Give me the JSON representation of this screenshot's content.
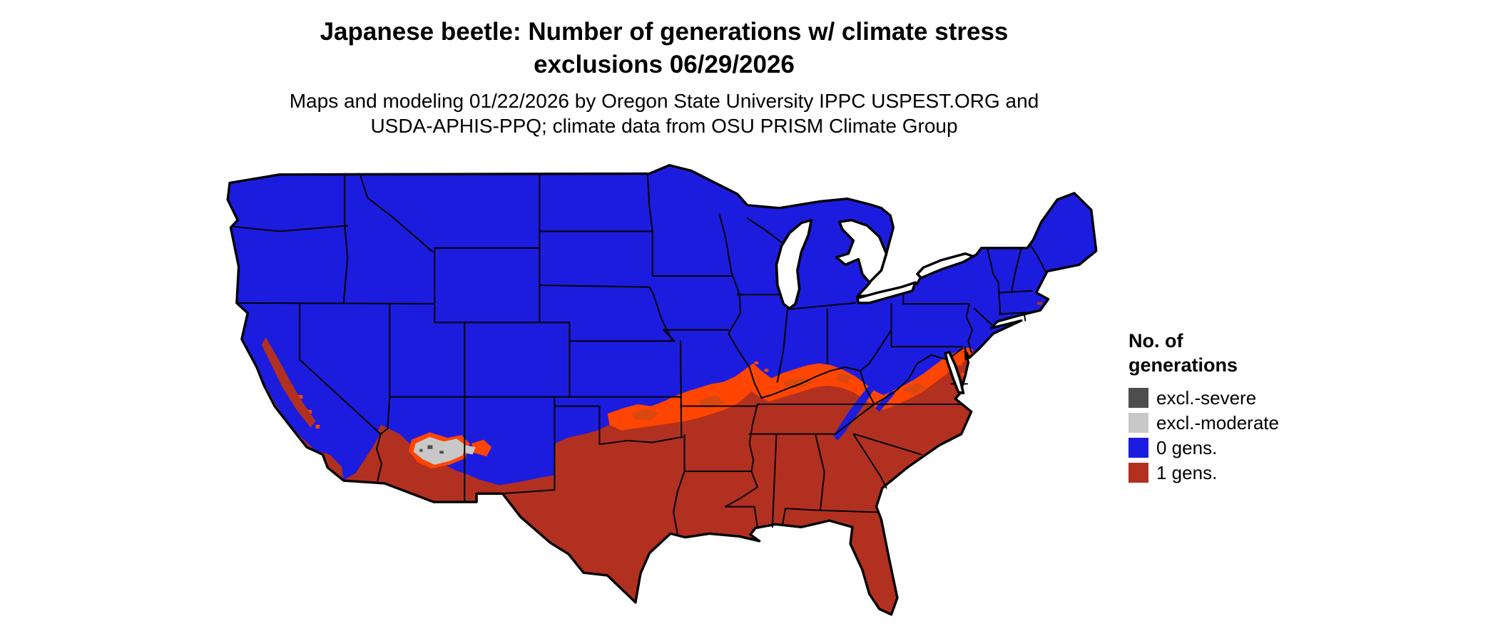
{
  "title": {
    "line1": "Japanese beetle: Number of generations w/ climate stress",
    "line2": "exclusions 06/29/2026"
  },
  "subtitle": {
    "line1": "Maps and modeling 01/22/2026 by Oregon State University IPPC USPEST.ORG and",
    "line2": "USDA-APHIS-PPQ; climate data from OSU PRISM Climate Group"
  },
  "legend": {
    "title_line1": "No. of",
    "title_line2": "generations",
    "items": [
      {
        "label": "excl.-severe",
        "color": "#4d4d4d"
      },
      {
        "label": "excl.-moderate",
        "color": "#c8c8c8"
      },
      {
        "label": "0 gens.",
        "color": "#1c1cdf"
      },
      {
        "label": "1 gens.",
        "color": "#b23020"
      }
    ]
  },
  "map": {
    "region": "Continental United States",
    "colors": {
      "zero_generations": "#1c1cdf",
      "one_generation": "#b23020",
      "transition_orange": "#ff4500",
      "transition_dark_orange": "#d8480f",
      "exclusion_moderate": "#c8c8c8",
      "exclusion_severe": "#4d4d4d",
      "water": "#ffffff",
      "borders": "#000000"
    }
  }
}
